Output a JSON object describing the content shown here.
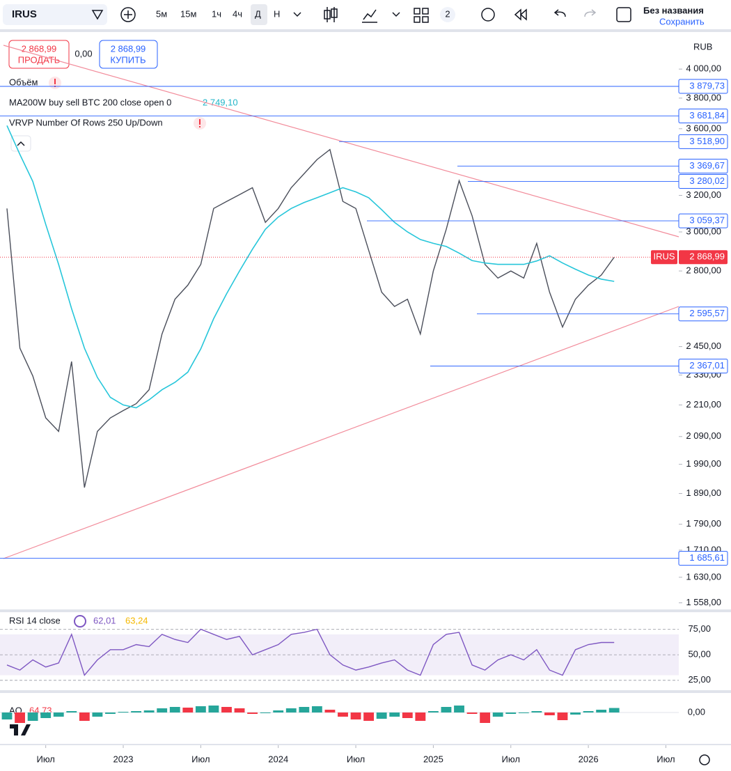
{
  "toolbar": {
    "symbol": "IRUS",
    "intervals": [
      "5м",
      "15м",
      "1ч",
      "4ч",
      "Д",
      "Н"
    ],
    "layout_count": "2",
    "layout_name": "Без названия",
    "save": "Сохранить"
  },
  "trade": {
    "sell_price": "2 868,99",
    "sell": "ПРОДАТЬ",
    "spread": "0,00",
    "buy_price": "2 868,99",
    "buy": "КУПИТЬ"
  },
  "legend": {
    "volume": "Объём",
    "ma_value": "2 749,10",
    "vrvp": "VRVP Number Of Rows 250 Up/Down"
  },
  "chart_data": [
    {
      "type": "line",
      "currency": "RUB",
      "log_scale": true,
      "x": [
        "2022-04",
        "2022-05",
        "2022-06",
        "2022-07",
        "2022-08",
        "2022-09",
        "2022-10",
        "2022-11",
        "2022-12",
        "2023-01",
        "2023-02",
        "2023-03",
        "2023-04",
        "2023-05",
        "2023-06",
        "2023-07",
        "2023-08",
        "2023-09",
        "2023-10",
        "2023-11",
        "2023-12",
        "2024-01",
        "2024-02",
        "2024-03",
        "2024-04",
        "2024-05",
        "2024-06",
        "2024-07",
        "2024-08",
        "2024-09",
        "2024-10",
        "2024-11",
        "2024-12",
        "2025-01",
        "2025-02",
        "2025-03",
        "2025-04",
        "2025-05",
        "2025-06",
        "2025-07",
        "2025-08",
        "2025-09",
        "2025-10",
        "2025-11",
        "2025-12",
        "2026-01",
        "2026-02",
        "2026-03"
      ],
      "xlim": [
        "2022-04",
        "2026-08"
      ],
      "xticks": [
        {
          "value": "2022-07",
          "label": "Июл"
        },
        {
          "value": "2023-01",
          "label": "2023"
        },
        {
          "value": "2023-07",
          "label": "Июл"
        },
        {
          "value": "2024-01",
          "label": "2024"
        },
        {
          "value": "2024-07",
          "label": "Июл"
        },
        {
          "value": "2025-01",
          "label": "2025"
        },
        {
          "value": "2025-07",
          "label": "Июл"
        },
        {
          "value": "2026-01",
          "label": "2026"
        },
        {
          "value": "2026-07",
          "label": "Июл"
        }
      ],
      "series": [
        {
          "name": "IRUS",
          "color": "#4a4e5a",
          "values": [
            3127,
            2443,
            2326,
            2160,
            2109,
            2386,
            1910,
            2109,
            2160,
            2188,
            2215,
            2270,
            2505,
            2664,
            2731,
            2833,
            3127,
            3166,
            3204,
            3244,
            3051,
            3127,
            3244,
            3325,
            3409,
            3470,
            3166,
            3127,
            2904,
            2697,
            2630,
            2664,
            2505,
            2800,
            3014,
            3284,
            3087,
            2833,
            2765,
            2800,
            2765,
            2940,
            2697,
            2536,
            2664,
            2731,
            2780,
            2868.99
          ]
        },
        {
          "name": "MA200W buy sell BTC 200 close open 0",
          "color": "#26c6da",
          "values": [
            3620,
            3440,
            3280,
            3040,
            2833,
            2620,
            2443,
            2320,
            2240,
            2210,
            2199,
            2230,
            2270,
            2300,
            2342,
            2440,
            2574,
            2690,
            2800,
            2910,
            3014,
            3080,
            3127,
            3160,
            3187,
            3215,
            3244,
            3220,
            3187,
            3120,
            3051,
            3000,
            2960,
            2940,
            2924,
            2890,
            2852,
            2840,
            2833,
            2833,
            2833,
            2850,
            2876,
            2840,
            2809,
            2780,
            2760,
            2749.1
          ]
        }
      ],
      "ylim": [
        1540,
        4260
      ],
      "yticks": [
        {
          "value": 4000,
          "label": "4 000,00"
        },
        {
          "value": 3800,
          "label": "3 800,00"
        },
        {
          "value": 3600,
          "label": "3 600,00"
        },
        {
          "value": 3200,
          "label": "3 200,00"
        },
        {
          "value": 3000,
          "label": "3 000,00"
        },
        {
          "value": 2800,
          "label": "2 800,00"
        },
        {
          "value": 2450,
          "label": "2 450,00"
        },
        {
          "value": 2330,
          "label": "2 330,00"
        },
        {
          "value": 2210,
          "label": "2 210,00"
        },
        {
          "value": 2090,
          "label": "2 090,00"
        },
        {
          "value": 1990,
          "label": "1 990,00"
        },
        {
          "value": 1890,
          "label": "1 890,00"
        },
        {
          "value": 1790,
          "label": "1 790,00"
        },
        {
          "value": 1710,
          "label": "1 710,00"
        },
        {
          "value": 1630,
          "label": "1 630,00"
        },
        {
          "value": 1558,
          "label": "1 558,00"
        }
      ],
      "levels": [
        {
          "value": 3879.73,
          "label": "3 879,73"
        },
        {
          "value": 3681.84,
          "label": "3 681,84"
        },
        {
          "value": 3518.9,
          "label": "3 518,90"
        },
        {
          "value": 3369.67,
          "label": "3 369,67"
        },
        {
          "value": 3280.02,
          "label": "3 280,02"
        },
        {
          "value": 3059.37,
          "label": "3 059,37"
        },
        {
          "value": 2595.57,
          "label": "2 595,57"
        },
        {
          "value": 2367.01,
          "label": "2 367,01"
        },
        {
          "value": 1685.61,
          "label": "1 685,61"
        }
      ],
      "last": {
        "value": 2868.99,
        "label": "2 868,99"
      },
      "level_color": "#2962ff",
      "last_color": "#f23645"
    },
    {
      "type": "line",
      "title": "RSI 14 close",
      "signal_label": "63,24",
      "x": [
        "2022-04",
        "2022-05",
        "2022-06",
        "2022-07",
        "2022-08",
        "2022-09",
        "2022-10",
        "2022-11",
        "2022-12",
        "2023-01",
        "2023-02",
        "2023-03",
        "2023-04",
        "2023-05",
        "2023-06",
        "2023-07",
        "2023-08",
        "2023-09",
        "2023-10",
        "2023-11",
        "2023-12",
        "2024-01",
        "2024-02",
        "2024-03",
        "2024-04",
        "2024-05",
        "2024-06",
        "2024-07",
        "2024-08",
        "2024-09",
        "2024-10",
        "2024-11",
        "2024-12",
        "2025-01",
        "2025-02",
        "2025-03",
        "2025-04",
        "2025-05",
        "2025-06",
        "2025-07",
        "2025-08",
        "2025-09",
        "2025-10",
        "2025-11",
        "2025-12",
        "2026-01",
        "2026-02",
        "2026-03"
      ],
      "series": [
        {
          "name": "RSI",
          "color": "#7e57c2",
          "values": [
            40,
            35,
            45,
            38,
            42,
            70,
            30,
            45,
            55,
            55,
            60,
            58,
            70,
            65,
            62,
            75,
            70,
            65,
            68,
            50,
            55,
            60,
            70,
            72,
            75,
            50,
            40,
            35,
            38,
            42,
            45,
            35,
            30,
            60,
            70,
            72,
            40,
            35,
            45,
            50,
            45,
            55,
            35,
            30,
            55,
            60,
            62,
            62.01
          ],
          "value_labels_last": "62,01"
        }
      ],
      "ylim": [
        16,
        91
      ],
      "yticks": [
        {
          "value": 75,
          "label": "75,00"
        },
        {
          "value": 50,
          "label": "50,00"
        },
        {
          "value": 25,
          "label": "25,00"
        }
      ],
      "band": [
        30,
        70
      ]
    },
    {
      "type": "bar",
      "title": "AO",
      "x": [
        "2022-04",
        "2022-05",
        "2022-06",
        "2022-07",
        "2022-08",
        "2022-09",
        "2022-10",
        "2022-11",
        "2022-12",
        "2023-01",
        "2023-02",
        "2023-03",
        "2023-04",
        "2023-05",
        "2023-06",
        "2023-07",
        "2023-08",
        "2023-09",
        "2023-10",
        "2023-11",
        "2023-12",
        "2024-01",
        "2024-02",
        "2024-03",
        "2024-04",
        "2024-05",
        "2024-06",
        "2024-07",
        "2024-08",
        "2024-09",
        "2024-10",
        "2024-11",
        "2024-12",
        "2025-01",
        "2025-02",
        "2025-03",
        "2025-04",
        "2025-05",
        "2025-06",
        "2025-07",
        "2025-08",
        "2025-09",
        "2025-10",
        "2025-11",
        "2025-12",
        "2026-01",
        "2026-02",
        "2026-03"
      ],
      "values": [
        -100,
        -150,
        -120,
        -80,
        -60,
        20,
        -120,
        -60,
        -20,
        10,
        20,
        30,
        60,
        80,
        70,
        90,
        100,
        80,
        60,
        -20,
        -10,
        30,
        60,
        80,
        90,
        40,
        -60,
        -100,
        -120,
        -90,
        -60,
        -80,
        -120,
        20,
        80,
        100,
        -20,
        -150,
        -60,
        -20,
        -10,
        20,
        -40,
        -110,
        -30,
        20,
        40,
        64.73
      ],
      "value_label_last": "64,73",
      "ylim": [
        -170,
        280
      ],
      "yticks": [
        {
          "value": 0,
          "label": "0,00"
        }
      ],
      "up_color": "#26a69a",
      "down_color": "#f23645"
    }
  ]
}
